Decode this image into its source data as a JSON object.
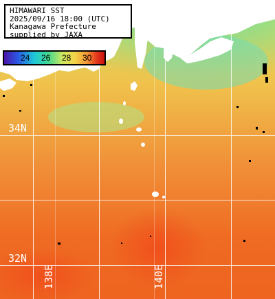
{
  "info": {
    "line1": "HIMAWARI SST",
    "line2": "2025/09/16 18:00 (UTC)",
    "line3": "Kanagawa Prefecture",
    "line4": "supplied by JAXA"
  },
  "scale": {
    "ticks": [
      "24",
      "26",
      "28",
      "30"
    ]
  },
  "grid_labels": {
    "lat1": "34N",
    "lat2": "32N",
    "lon1": "138E",
    "lon2": "140E"
  },
  "colors": {
    "land": "#ffffff",
    "grid": "#ffffff",
    "warm": "#ef6a22",
    "cool": "#d8e470"
  }
}
